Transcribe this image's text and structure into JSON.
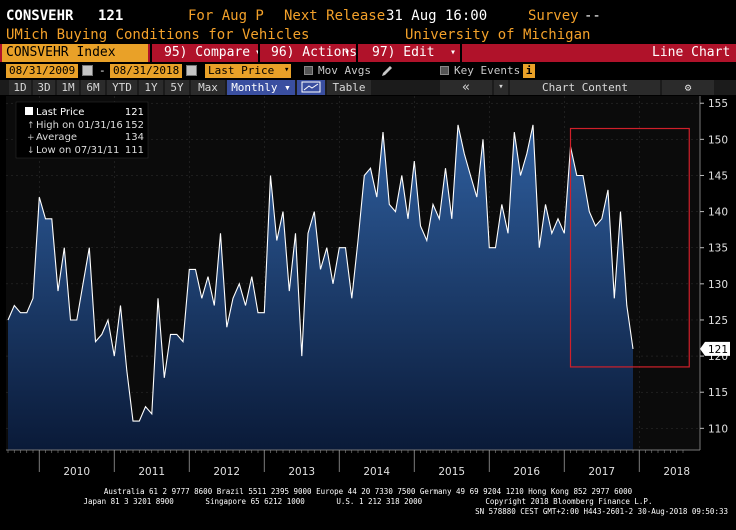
{
  "header": {
    "ticker": "CONSVEHR",
    "last_value": "121",
    "for_label": "For Aug P",
    "next_release_label": "Next Release",
    "next_release_value": "31 Aug 16:00",
    "survey_label": "Survey",
    "survey_value": "--",
    "description": "UMich Buying Conditions for Vehicles",
    "source": "University of Michigan"
  },
  "command_bar": {
    "security": "CONSVEHR Index",
    "compare": "95) Compare",
    "actions": "96) Actions",
    "edit": "97) Edit",
    "chart_type": "Line Chart",
    "dropdown_glyph": "▾"
  },
  "date_row": {
    "start_date": "08/31/2009",
    "end_date": "08/31/2018",
    "dash": "-",
    "price_field": "Last Price",
    "mov_avgs": "Mov Avgs",
    "key_events": "Key Events",
    "info_glyph": "i"
  },
  "toolbar": {
    "ranges": [
      "1D",
      "3D",
      "1M",
      "6M",
      "YTD",
      "1Y",
      "5Y",
      "Max"
    ],
    "frequency": "Monthly ▾",
    "table": "Table",
    "back_glyph": "«",
    "chart_content": "Chart Content",
    "gear_glyph": "⚙"
  },
  "legend": {
    "rows": [
      {
        "label": "Last Price",
        "value": "121"
      },
      {
        "label": "High on 01/31/16",
        "value": "152"
      },
      {
        "label": "Average",
        "value": "134"
      },
      {
        "label": "Low on 07/31/11",
        "value": "111"
      }
    ]
  },
  "chart_data": {
    "type": "area",
    "title": "",
    "xlabel": "",
    "ylabel": "",
    "ylim": [
      107,
      156
    ],
    "y_ticks": [
      110,
      115,
      120,
      125,
      130,
      135,
      140,
      145,
      150,
      155
    ],
    "x_year_labels": [
      "2010",
      "2011",
      "2012",
      "2013",
      "2014",
      "2015",
      "2016",
      "2017",
      "2018"
    ],
    "x_start": "2009-08",
    "x_end": "2018-08",
    "last_value_label": "121",
    "series": [
      {
        "values": [
          125,
          127,
          126,
          126,
          128,
          142,
          139,
          139,
          129,
          135,
          125,
          125,
          130,
          135,
          122,
          123,
          125,
          120,
          127,
          118,
          111,
          111,
          113,
          112,
          128,
          117,
          123,
          123,
          122,
          132,
          132,
          128,
          131,
          127,
          137,
          124,
          128,
          130,
          127,
          131,
          126,
          126,
          145,
          136,
          140,
          129,
          137,
          120,
          137,
          140,
          132,
          135,
          130,
          135,
          135,
          128,
          136,
          145,
          146,
          142,
          151,
          141,
          140,
          145,
          139,
          147,
          138,
          136,
          141,
          139,
          146,
          139,
          152,
          148,
          145,
          142,
          150,
          135,
          135,
          141,
          137,
          151,
          145,
          148,
          152,
          135,
          141,
          137,
          139,
          137,
          149,
          145,
          145,
          140,
          138,
          139,
          143,
          128,
          140,
          127,
          121
        ],
        "color": "#ffffff"
      }
    ],
    "highlight_box": {
      "x_from": "2017-02",
      "x_to": "2018-09",
      "y_from": 118.5,
      "y_to": 151.5,
      "color": "#d0202a"
    }
  },
  "footer": {
    "line1": "Australia 61 2 9777 8600 Brazil 5511 2395 9000 Europe 44 20 7330 7500 Germany 49 69 9204 1210 Hong Kong 852 2977 6000",
    "line2": "Japan 81 3 3201 8900       Singapore 65 6212 1000       U.S. 1 212 318 2000              Copyright 2018 Bloomberg Finance L.P.",
    "line3": "SN 578880 CEST GMT+2:00 H443-2601-2 30-Aug-2018 09:50:33"
  }
}
